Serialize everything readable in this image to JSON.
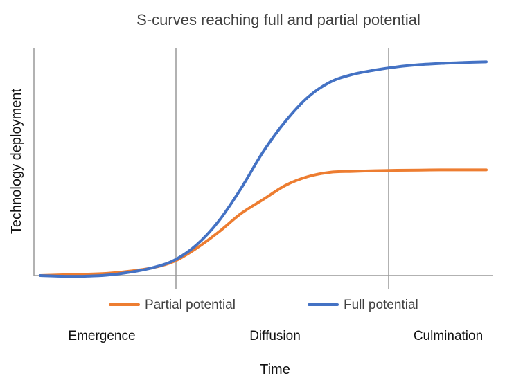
{
  "chart_data": {
    "type": "line",
    "title": "S-curves reaching full and partial potential",
    "xlabel": "Time",
    "ylabel": "Technology deployment",
    "phases": [
      "Emergence",
      "Diffusion",
      "Culmination"
    ],
    "grid": "vertical lines at phase boundaries",
    "legend_position": "bottom",
    "xlim": [
      0,
      10
    ],
    "ylim": [
      0,
      100
    ],
    "x": [
      0,
      0.5,
      1,
      1.5,
      2,
      2.5,
      3,
      3.5,
      4,
      4.5,
      5,
      5.5,
      6,
      6.5,
      7,
      7.5,
      8,
      8.5,
      9,
      9.5,
      10
    ],
    "series": [
      {
        "name": "Partial potential",
        "color": "#ED7D31",
        "values": [
          0,
          0.3,
          0.6,
          1.0,
          2.0,
          3.5,
          6.5,
          12.5,
          20.0,
          28.5,
          35.0,
          41.5,
          45.5,
          47.5,
          47.9,
          48.2,
          48.4,
          48.5,
          48.6,
          48.6,
          48.6
        ]
      },
      {
        "name": "Full potential",
        "color": "#4472C4",
        "values": [
          0,
          -0.3,
          -0.3,
          0.2,
          1.5,
          3.5,
          7.0,
          14.0,
          25.0,
          40.0,
          57.0,
          71.0,
          82.0,
          89.0,
          92.5,
          94.5,
          96.0,
          97.0,
          97.6,
          98.0,
          98.3
        ]
      }
    ]
  }
}
